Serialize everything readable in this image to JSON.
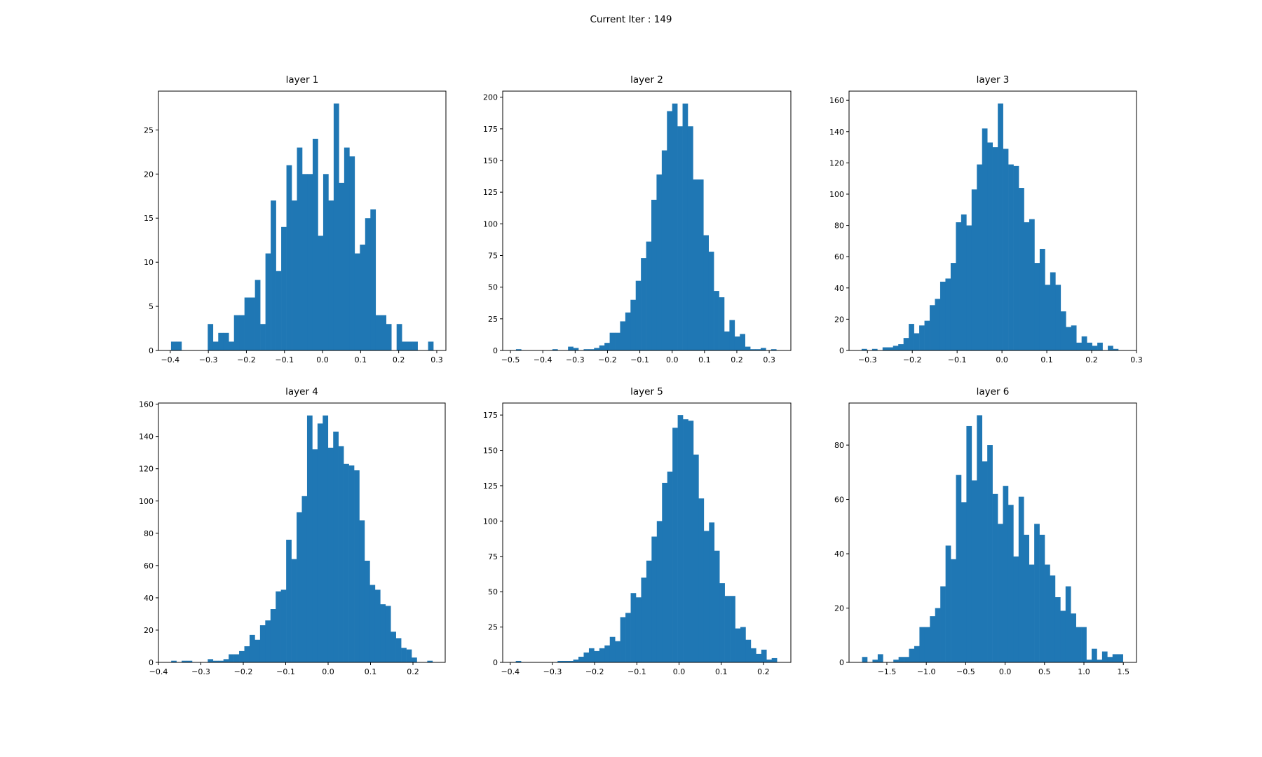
{
  "figure": {
    "suptitle": "Current Iter : 149",
    "bar_color": "#1f77b4",
    "axis_color": "#000000"
  },
  "chart_data": [
    {
      "type": "bar",
      "title": "layer 1",
      "xlabel": "",
      "ylabel": "",
      "xlim": [
        -0.431,
        0.324
      ],
      "ylim": [
        0,
        29.4
      ],
      "xticks": [
        -0.4,
        -0.3,
        -0.2,
        -0.1,
        0.0,
        0.1,
        0.2,
        0.3
      ],
      "xtick_labels": [
        "−0.4",
        "−0.3",
        "−0.2",
        "−0.1",
        "0.0",
        "0.1",
        "0.2",
        "0.3"
      ],
      "yticks": [
        0,
        5,
        10,
        15,
        20,
        25
      ],
      "bin_start": -0.398,
      "bin_end": 0.291,
      "counts": [
        1,
        1,
        0,
        0,
        0,
        0,
        0,
        3,
        1,
        2,
        2,
        1,
        4,
        4,
        6,
        6,
        8,
        3,
        11,
        17,
        9,
        14,
        21,
        17,
        23,
        20,
        20,
        24,
        13,
        20,
        17,
        28,
        19,
        23,
        22,
        11,
        12,
        15,
        16,
        4,
        4,
        3,
        0,
        3,
        1,
        1,
        1,
        0,
        0,
        1
      ]
    },
    {
      "type": "bar",
      "title": "layer 2",
      "xlabel": "",
      "ylabel": "",
      "xlim": [
        -0.524,
        0.367
      ],
      "ylim": [
        0,
        204.8
      ],
      "xticks": [
        -0.5,
        -0.4,
        -0.3,
        -0.2,
        -0.1,
        0.0,
        0.1,
        0.2,
        0.3
      ],
      "xtick_labels": [
        "−0.5",
        "−0.4",
        "−0.3",
        "−0.2",
        "−0.1",
        "0.0",
        "0.1",
        "0.2",
        "0.3"
      ],
      "yticks": [
        0,
        25,
        50,
        75,
        100,
        125,
        150,
        175,
        200
      ],
      "bin_start": -0.483,
      "bin_end": 0.322,
      "counts": [
        1,
        0,
        0,
        0,
        0,
        0,
        0,
        1,
        0,
        0,
        3,
        2,
        0,
        1,
        1,
        2,
        4,
        6,
        14,
        14,
        23,
        30,
        40,
        55,
        73,
        86,
        119,
        139,
        158,
        189,
        195,
        177,
        195,
        177,
        135,
        135,
        91,
        78,
        47,
        42,
        15,
        24,
        11,
        13,
        3,
        1,
        1,
        2,
        0,
        1
      ]
    },
    {
      "type": "bar",
      "title": "layer 3",
      "xlabel": "",
      "ylabel": "",
      "xlim": [
        -0.341,
        0.3
      ],
      "ylim": [
        0,
        165.9
      ],
      "xticks": [
        -0.3,
        -0.2,
        -0.1,
        0.0,
        0.1,
        0.2,
        0.3
      ],
      "xtick_labels": [
        "−0.3",
        "−0.2",
        "−0.1",
        "0.0",
        "0.1",
        "0.2",
        "0.3"
      ],
      "yticks": [
        0,
        20,
        40,
        60,
        80,
        100,
        120,
        140,
        160
      ],
      "bin_start": -0.313,
      "bin_end": 0.271,
      "counts": [
        1,
        0,
        1,
        0,
        2,
        2,
        3,
        4,
        8,
        17,
        11,
        16,
        19,
        29,
        33,
        44,
        46,
        56,
        82,
        87,
        80,
        103,
        119,
        142,
        133,
        130,
        158,
        129,
        119,
        118,
        104,
        82,
        84,
        56,
        65,
        42,
        50,
        42,
        25,
        15,
        16,
        5,
        9,
        5,
        3,
        5,
        0,
        3,
        1,
        0
      ]
    },
    {
      "type": "bar",
      "title": "layer 4",
      "xlabel": "",
      "ylabel": "",
      "xlim": [
        -0.4,
        0.276
      ],
      "ylim": [
        0,
        160.7
      ],
      "xticks": [
        -0.4,
        -0.3,
        -0.2,
        -0.1,
        0.0,
        0.1,
        0.2
      ],
      "xtick_labels": [
        "−0.4",
        "−0.3",
        "−0.2",
        "−0.1",
        "0.0",
        "0.1",
        "0.2"
      ],
      "yticks": [
        0,
        20,
        40,
        60,
        80,
        100,
        120,
        140,
        160
      ],
      "bin_start": -0.37,
      "bin_end": 0.246,
      "counts": [
        1,
        0,
        1,
        1,
        0,
        0,
        0,
        2,
        1,
        1,
        2,
        5,
        5,
        7,
        10,
        17,
        14,
        23,
        26,
        33,
        44,
        45,
        76,
        64,
        93,
        103,
        153,
        132,
        148,
        153,
        133,
        143,
        134,
        123,
        122,
        119,
        88,
        63,
        48,
        45,
        36,
        35,
        19,
        15,
        9,
        8,
        3,
        0,
        0,
        1
      ]
    },
    {
      "type": "bar",
      "title": "layer 5",
      "xlabel": "",
      "ylabel": "",
      "xlim": [
        -0.418,
        0.265
      ],
      "ylim": [
        0,
        183.5
      ],
      "xticks": [
        -0.4,
        -0.3,
        -0.2,
        -0.1,
        0.0,
        0.1,
        0.2
      ],
      "xtick_labels": [
        "−0.4",
        "−0.3",
        "−0.2",
        "−0.1",
        "0.0",
        "0.1",
        "0.2"
      ],
      "yticks": [
        0,
        25,
        50,
        75,
        100,
        125,
        150,
        175
      ],
      "bin_start": -0.387,
      "bin_end": 0.232,
      "counts": [
        1,
        0,
        0,
        0,
        0,
        0,
        0,
        0,
        1,
        1,
        1,
        2,
        4,
        7,
        10,
        8,
        10,
        12,
        18,
        15,
        32,
        35,
        49,
        46,
        60,
        72,
        89,
        100,
        127,
        135,
        166,
        175,
        172,
        171,
        147,
        116,
        93,
        99,
        79,
        56,
        47,
        47,
        24,
        25,
        16,
        10,
        6,
        9,
        2,
        3
      ]
    },
    {
      "type": "bar",
      "title": "layer 6",
      "xlabel": "",
      "ylabel": "",
      "xlim": [
        -1.98,
        1.667
      ],
      "ylim": [
        0,
        95.5
      ],
      "xticks": [
        -1.5,
        -1.0,
        -0.5,
        0.0,
        0.5,
        1.0,
        1.5
      ],
      "xtick_labels": [
        "−1.5",
        "−1.0",
        "−0.5",
        "0.0",
        "0.5",
        "1.0",
        "1.5"
      ],
      "yticks": [
        0,
        20,
        40,
        60,
        80
      ],
      "bin_start": -1.815,
      "bin_end": 1.495,
      "counts": [
        2,
        0,
        1,
        3,
        0,
        0,
        1,
        2,
        2,
        5,
        6,
        13,
        13,
        17,
        20,
        28,
        43,
        38,
        69,
        59,
        87,
        67,
        91,
        74,
        80,
        62,
        51,
        65,
        58,
        39,
        61,
        47,
        36,
        51,
        47,
        36,
        32,
        24,
        19,
        28,
        18,
        13,
        13,
        1,
        5,
        1,
        4,
        2,
        3,
        3
      ]
    }
  ]
}
